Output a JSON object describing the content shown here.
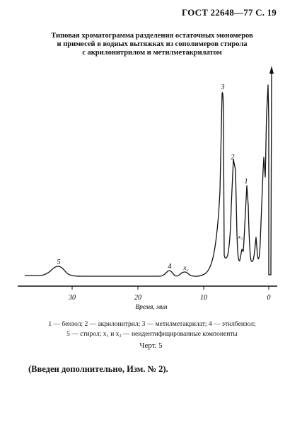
{
  "header": "ГОСТ 22648—77 С. 19",
  "title_lines": [
    "Типовая хроматограмма разделения остаточных мономеров",
    "и примесей в водных вытяжках из сополимеров стирола",
    "с акрилонитрилом и метилметакрилатом"
  ],
  "chart_data": {
    "type": "line",
    "xlabel": "Время, мин",
    "xticks": [
      "30",
      "20",
      "10",
      "0"
    ],
    "xlim": [
      38,
      0
    ],
    "x_reversed": true,
    "peaks": [
      {
        "label": "5",
        "time_min": 31.5
      },
      {
        "label": "4",
        "time_min": 14.8
      },
      {
        "label": "x₂",
        "time_min": 12.8
      },
      {
        "label": "3",
        "time_min": 7.4
      },
      {
        "label": "2",
        "time_min": 5.6
      },
      {
        "label": "x₁",
        "time_min": 4.5
      },
      {
        "label": "1",
        "time_min": 3.8
      }
    ]
  },
  "caption_lines": [
    "1 — бензол; 2 — акрилонитрил; 3 — метилметакрилат; 4 — этилбензол;",
    "5 — стирол; x₁ и x₂ — неидентифицированные компоненты"
  ],
  "figure_label": "Черт. 5",
  "note": "(Введен дополнительно, Изм. № 2)."
}
